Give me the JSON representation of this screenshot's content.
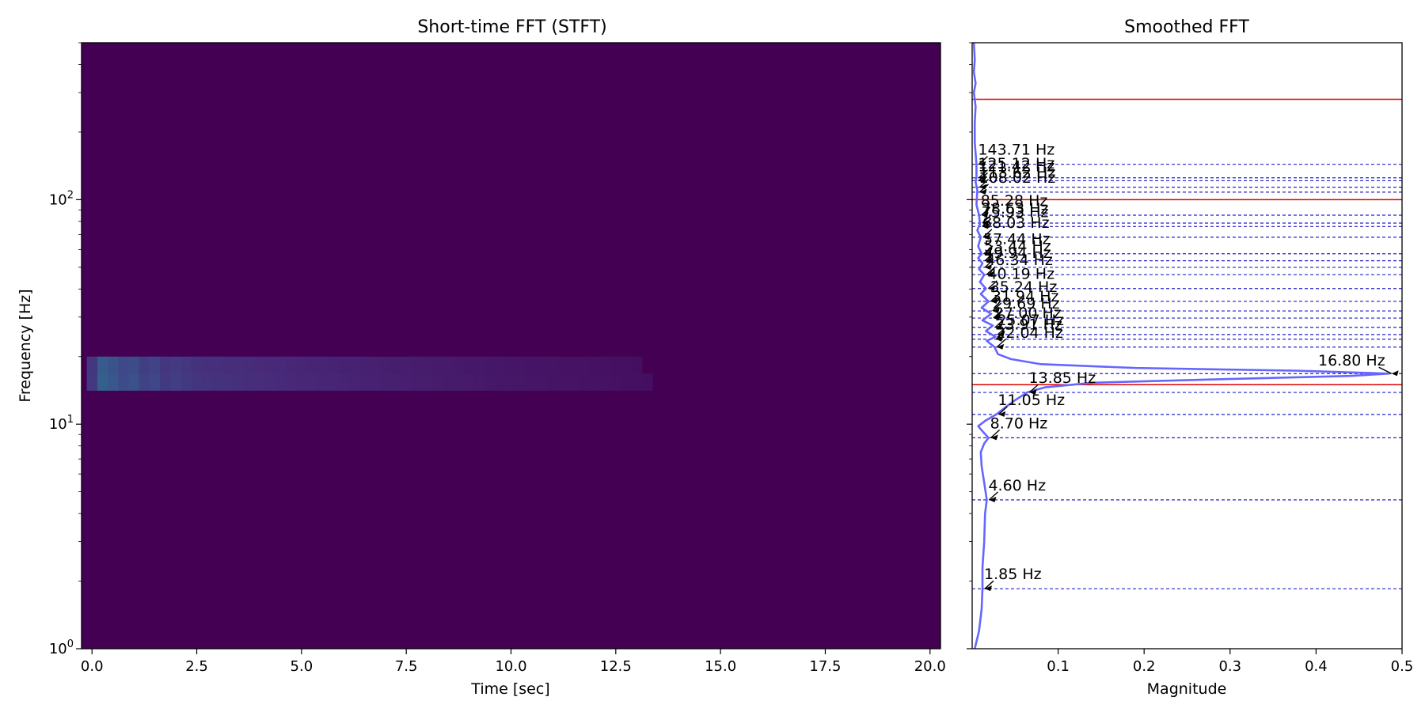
{
  "chart_data": [
    {
      "type": "heatmap",
      "title": "Short-time FFT (STFT)",
      "xlabel": "Time [sec]",
      "ylabel": "Frequency [Hz]",
      "xlim": [
        -0.25,
        20.25
      ],
      "ylim": [
        1,
        500
      ],
      "yscale": "log",
      "xticks": [
        "0.0",
        "2.5",
        "5.0",
        "7.5",
        "10.0",
        "12.5",
        "15.0",
        "17.5",
        "20.0"
      ],
      "yticks": [
        "10^0",
        "10^1",
        "10^2"
      ],
      "colormap": "viridis",
      "time_bin_sec": 0.25,
      "dominant_band_hz": 16.8,
      "intensity_profile": [
        {
          "t": 0.0,
          "v": 0.55
        },
        {
          "t": 0.25,
          "v": 1.0
        },
        {
          "t": 0.5,
          "v": 0.9
        },
        {
          "t": 0.75,
          "v": 0.75
        },
        {
          "t": 1.0,
          "v": 0.8
        },
        {
          "t": 1.25,
          "v": 0.65
        },
        {
          "t": 1.5,
          "v": 0.7
        },
        {
          "t": 1.75,
          "v": 0.55
        },
        {
          "t": 2.0,
          "v": 0.6
        },
        {
          "t": 2.5,
          "v": 0.5
        },
        {
          "t": 3.0,
          "v": 0.47
        },
        {
          "t": 4.0,
          "v": 0.42
        },
        {
          "t": 5.0,
          "v": 0.36
        },
        {
          "t": 7.5,
          "v": 0.28
        },
        {
          "t": 10.0,
          "v": 0.2
        },
        {
          "t": 12.5,
          "v": 0.15
        },
        {
          "t": 15.0,
          "v": 0.1
        },
        {
          "t": 17.5,
          "v": 0.06
        },
        {
          "t": 20.0,
          "v": 0.03
        }
      ]
    },
    {
      "type": "line",
      "title": "Smoothed FFT",
      "xlabel": "Magnitude",
      "xlim": [
        0.0,
        0.5
      ],
      "ylim": [
        1,
        500
      ],
      "yscale": "log",
      "xticks": [
        "0.1",
        "0.2",
        "0.3",
        "0.4",
        "0.5"
      ],
      "colors": {
        "curve": "#6666ff",
        "peak_lines": "#2222cc",
        "band_lines": "#e00000"
      },
      "series": [
        {
          "points": [
            [
              1.0,
              0.003
            ],
            [
              1.2,
              0.008
            ],
            [
              1.5,
              0.011
            ],
            [
              1.85,
              0.012
            ],
            [
              2.3,
              0.012
            ],
            [
              3.0,
              0.014
            ],
            [
              4.0,
              0.015
            ],
            [
              4.6,
              0.017
            ],
            [
              5.5,
              0.014
            ],
            [
              6.5,
              0.011
            ],
            [
              7.5,
              0.01
            ],
            [
              8.2,
              0.014
            ],
            [
              8.7,
              0.019
            ],
            [
              9.3,
              0.012
            ],
            [
              9.8,
              0.007
            ],
            [
              10.4,
              0.016
            ],
            [
              11.05,
              0.028
            ],
            [
              12.0,
              0.04
            ],
            [
              12.8,
              0.05
            ],
            [
              13.85,
              0.064
            ],
            [
              14.6,
              0.085
            ],
            [
              15.3,
              0.14
            ],
            [
              15.9,
              0.3
            ],
            [
              16.4,
              0.44
            ],
            [
              16.8,
              0.485
            ],
            [
              17.3,
              0.38
            ],
            [
              17.8,
              0.19
            ],
            [
              18.5,
              0.08
            ],
            [
              19.5,
              0.045
            ],
            [
              20.5,
              0.03
            ],
            [
              22.04,
              0.026
            ],
            [
              23.5,
              0.017
            ],
            [
              24.5,
              0.027
            ],
            [
              26.0,
              0.016
            ],
            [
              27.5,
              0.024
            ],
            [
              29.0,
              0.012
            ],
            [
              31.0,
              0.022
            ],
            [
              33.0,
              0.011
            ],
            [
              35.2,
              0.019
            ],
            [
              38.0,
              0.01
            ],
            [
              40.2,
              0.016
            ],
            [
              43.0,
              0.009
            ],
            [
              46.3,
              0.014
            ],
            [
              49.0,
              0.008
            ],
            [
              52.0,
              0.012
            ],
            [
              55.0,
              0.007
            ],
            [
              57.4,
              0.011
            ],
            [
              62.0,
              0.007
            ],
            [
              68.0,
              0.01
            ],
            [
              73.0,
              0.006
            ],
            [
              78.0,
              0.009
            ],
            [
              85.3,
              0.008
            ],
            [
              95.0,
              0.005
            ],
            [
              110.0,
              0.006
            ],
            [
              120.0,
              0.004
            ],
            [
              127.0,
              0.005
            ],
            [
              143.7,
              0.005
            ],
            [
              180.0,
              0.003
            ],
            [
              220.0,
              0.003
            ],
            [
              260.0,
              0.004
            ],
            [
              300.0,
              0.002
            ],
            [
              330.0,
              0.004
            ],
            [
              370.0,
              0.002
            ],
            [
              420.0,
              0.003
            ],
            [
              500.0,
              0.002
            ]
          ]
        }
      ],
      "band_lines_hz": [
        15.0,
        100.0,
        280.0
      ],
      "peaks": [
        {
          "label": "1.85 Hz",
          "freq": 1.85,
          "mag": 0.012
        },
        {
          "label": "4.60 Hz",
          "freq": 4.6,
          "mag": 0.017
        },
        {
          "label": "8.70 Hz",
          "freq": 8.7,
          "mag": 0.019
        },
        {
          "label": "11.05 Hz",
          "freq": 11.05,
          "mag": 0.028
        },
        {
          "label": "13.85 Hz",
          "freq": 13.85,
          "mag": 0.064
        },
        {
          "label": "16.80 Hz",
          "freq": 16.8,
          "mag": 0.485
        },
        {
          "label": "22.04 Hz",
          "freq": 22.04,
          "mag": 0.026
        },
        {
          "label": "23.91 Hz",
          "freq": 23.91,
          "mag": 0.025
        },
        {
          "label": "25.07 Hz",
          "freq": 25.07,
          "mag": 0.027
        },
        {
          "label": "27.00 Hz",
          "freq": 27.0,
          "mag": 0.024
        },
        {
          "label": "29.69 Hz",
          "freq": 29.69,
          "mag": 0.022
        },
        {
          "label": "31.94 Hz",
          "freq": 31.94,
          "mag": 0.021
        },
        {
          "label": "35.24 Hz",
          "freq": 35.24,
          "mag": 0.019
        },
        {
          "label": "40.19 Hz",
          "freq": 40.19,
          "mag": 0.016
        },
        {
          "label": "46.34 Hz",
          "freq": 46.34,
          "mag": 0.014
        },
        {
          "label": "49.94 Hz",
          "freq": 49.94,
          "mag": 0.012
        },
        {
          "label": "53.44 Hz",
          "freq": 53.44,
          "mag": 0.012
        },
        {
          "label": "57.44 Hz",
          "freq": 57.44,
          "mag": 0.011
        },
        {
          "label": "68.03 Hz",
          "freq": 68.03,
          "mag": 0.01
        },
        {
          "label": "75.93 Hz",
          "freq": 75.93,
          "mag": 0.009
        },
        {
          "label": "78.63 Hz",
          "freq": 78.63,
          "mag": 0.009
        },
        {
          "label": "85.28 Hz",
          "freq": 85.28,
          "mag": 0.008
        },
        {
          "label": "108.02 Hz",
          "freq": 108.02,
          "mag": 0.006
        },
        {
          "label": "113.62 Hz",
          "freq": 113.62,
          "mag": 0.006
        },
        {
          "label": "121.42 Hz",
          "freq": 121.42,
          "mag": 0.005
        },
        {
          "label": "125.12 Hz",
          "freq": 125.12,
          "mag": 0.005
        },
        {
          "label": "143.71 Hz",
          "freq": 143.71,
          "mag": 0.005
        }
      ]
    }
  ]
}
